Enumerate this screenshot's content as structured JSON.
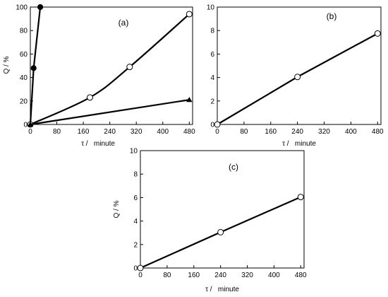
{
  "chart_data": [
    {
      "id": "a",
      "type": "line",
      "panel_label": "(a)",
      "xlabel": "τ /   minute",
      "ylabel": "Q / %",
      "xlim": [
        0,
        490
      ],
      "ylim": [
        0,
        100
      ],
      "xticks": [
        0,
        80,
        160,
        240,
        320,
        400,
        480
      ],
      "yticks": [
        0,
        20,
        40,
        60,
        80,
        100
      ],
      "grid": false,
      "series": [
        {
          "marker": "filled-circle",
          "smooth": false,
          "x": [
            0,
            10,
            30
          ],
          "y": [
            0,
            48,
            100
          ]
        },
        {
          "marker": "open-circle",
          "smooth": true,
          "x": [
            0,
            180,
            300,
            480
          ],
          "y": [
            0,
            23,
            49,
            94
          ]
        },
        {
          "marker": "filled-triangle",
          "smooth": false,
          "x": [
            0,
            480
          ],
          "y": [
            0,
            21
          ]
        }
      ]
    },
    {
      "id": "b",
      "type": "line",
      "panel_label": "(b)",
      "xlabel": "τ /   minute",
      "ylabel": "",
      "xlim": [
        0,
        490
      ],
      "ylim": [
        0,
        10
      ],
      "xticks": [
        0,
        80,
        160,
        240,
        320,
        400,
        480
      ],
      "yticks": [
        0,
        2,
        4,
        6,
        8,
        10
      ],
      "grid": false,
      "series": [
        {
          "marker": "open-circle",
          "smooth": false,
          "x": [
            0,
            240,
            480
          ],
          "y": [
            0,
            4.05,
            7.75
          ]
        }
      ]
    },
    {
      "id": "c",
      "type": "line",
      "panel_label": "(c)",
      "xlabel": "τ /   minute",
      "ylabel": "Q / %",
      "xlim": [
        0,
        490
      ],
      "ylim": [
        0,
        10
      ],
      "xticks": [
        0,
        80,
        160,
        240,
        320,
        400,
        480
      ],
      "yticks": [
        0,
        2,
        4,
        6,
        8,
        10
      ],
      "grid": false,
      "series": [
        {
          "marker": "open-circle",
          "smooth": false,
          "x": [
            0,
            240,
            480
          ],
          "y": [
            0,
            3.05,
            6.05
          ]
        }
      ]
    }
  ]
}
